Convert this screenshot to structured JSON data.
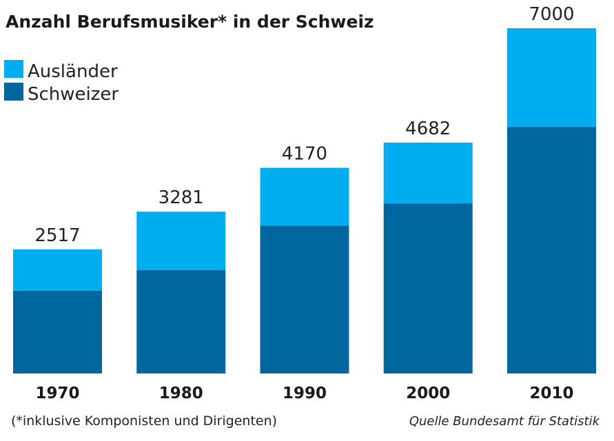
{
  "chart_data": {
    "type": "bar",
    "stacked": true,
    "title": "Anzahl Berufsmusiker* in der Schweiz",
    "categories": [
      "1970",
      "1980",
      "1990",
      "2000",
      "2010"
    ],
    "series": [
      {
        "name": "Schweizer",
        "color": "#00679e",
        "values": [
          1680,
          2100,
          3000,
          3450,
          5000
        ]
      },
      {
        "name": "Ausländer",
        "color": "#00aeef",
        "values": [
          837,
          1181,
          1170,
          1232,
          2000
        ]
      }
    ],
    "totals": [
      "2517",
      "3281",
      "4170",
      "4682",
      "7000"
    ],
    "ylim": [
      0,
      7000
    ],
    "grid": false,
    "legend": "top-left",
    "footnote": "(*inklusive Komponisten und Dirigenten)",
    "source": "Quelle Bundesamt für Statistik"
  }
}
